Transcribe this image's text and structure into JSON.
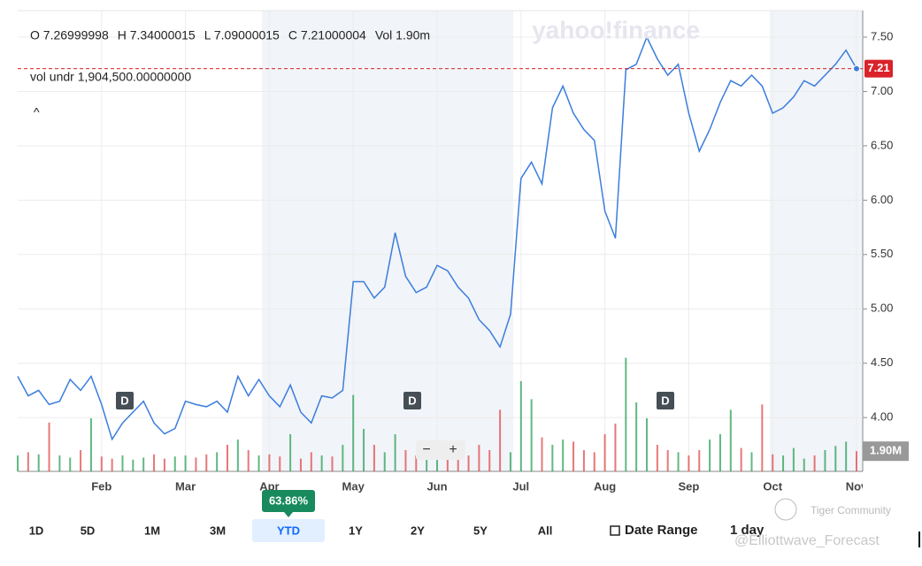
{
  "header": {
    "ohlc": [
      "O 7.26999998",
      "H 7.34000015",
      "L 7.09000015",
      "C 7.21000004",
      "Vol 1.90m"
    ],
    "vol_undr": "vol undr  1,904,500.00000000",
    "collapse": "^",
    "watermark": "yahoo!finance"
  },
  "chart_data": {
    "type": "line",
    "categories": [
      null,
      null,
      null,
      null,
      null,
      null,
      null,
      null,
      "Feb",
      null,
      null,
      null,
      null,
      null,
      null,
      null,
      "Mar",
      null,
      null,
      null,
      null,
      null,
      null,
      null,
      "Apr",
      null,
      null,
      null,
      null,
      null,
      null,
      null,
      "May",
      null,
      null,
      null,
      null,
      null,
      null,
      null,
      "Jun",
      null,
      null,
      null,
      null,
      null,
      null,
      null,
      "Jul",
      null,
      null,
      null,
      null,
      null,
      null,
      null,
      "Aug",
      null,
      null,
      null,
      null,
      null,
      null,
      null,
      "Sep",
      null,
      null,
      null,
      null,
      null,
      null,
      null,
      "Oct",
      null,
      null,
      null,
      null,
      null,
      null,
      null,
      "Nov"
    ],
    "series": [
      {
        "color": "#3b7ddd",
        "values": [
          4.38,
          4.2,
          4.25,
          4.12,
          4.15,
          4.35,
          4.25,
          4.38,
          4.12,
          3.8,
          3.95,
          4.05,
          4.15,
          3.95,
          3.85,
          3.9,
          4.15,
          4.12,
          4.1,
          4.15,
          4.05,
          4.38,
          4.2,
          4.35,
          4.2,
          4.1,
          4.3,
          4.05,
          3.95,
          4.2,
          4.18,
          4.25,
          5.25,
          5.25,
          5.1,
          5.2,
          5.7,
          5.3,
          5.15,
          5.2,
          5.4,
          5.35,
          5.2,
          5.1,
          4.9,
          4.8,
          4.65,
          4.95,
          6.2,
          6.35,
          6.15,
          6.85,
          7.05,
          6.8,
          6.65,
          6.55,
          5.9,
          5.65,
          7.2,
          7.25,
          7.5,
          7.3,
          7.15,
          7.25,
          6.8,
          6.45,
          6.65,
          6.9,
          7.1,
          7.05,
          7.15,
          7.05,
          6.8,
          6.85,
          6.95,
          7.1,
          7.05,
          7.15,
          7.25,
          7.38,
          7.21
        ]
      }
    ],
    "ylim": [
      3.505,
      7.744
    ],
    "yticks": [
      {
        "value": 4,
        "label": "4.00"
      },
      {
        "value": 4.5,
        "label": "4.50"
      },
      {
        "value": 5,
        "label": "5.00"
      },
      {
        "value": 5.5,
        "label": "5.50"
      },
      {
        "value": 6,
        "label": "6.00"
      },
      {
        "value": 6.5,
        "label": "6.50"
      },
      {
        "value": 7,
        "label": "7.00"
      },
      {
        "value": 7.5,
        "label": "7.50"
      }
    ],
    "grid": true,
    "current": {
      "value": 7.21,
      "label": "7.21",
      "color": "#d9222a"
    },
    "volume": {
      "values": [
        1.5,
        1.8,
        1.6,
        4.6,
        1.5,
        1.3,
        2.0,
        5.0,
        1.4,
        1.2,
        1.5,
        1.1,
        1.3,
        1.6,
        1.2,
        1.4,
        1.5,
        1.3,
        1.6,
        1.8,
        2.5,
        3.0,
        2.0,
        1.5,
        1.6,
        1.4,
        3.5,
        1.2,
        1.8,
        1.5,
        1.4,
        2.5,
        7.2,
        4.0,
        2.5,
        1.8,
        3.5,
        2.0,
        1.5,
        1.8,
        2.0,
        1.6,
        1.8,
        1.5,
        2.5,
        2.0,
        5.8,
        1.8,
        8.5,
        6.8,
        3.2,
        2.5,
        3.0,
        2.8,
        2.0,
        1.8,
        3.5,
        4.5,
        10.7,
        6.5,
        5.0,
        2.5,
        2.0,
        1.8,
        1.5,
        2.0,
        3.0,
        3.5,
        5.8,
        2.2,
        1.8,
        6.3,
        1.6,
        1.5,
        2.2,
        1.2,
        1.5,
        2.0,
        2.4,
        2.8,
        1.9
      ],
      "ylim": [
        0,
        43.4
      ],
      "last_label": "1.90M",
      "up_color": "#2ca05a",
      "down_color": "#e04a4a"
    },
    "events": [
      "D",
      "D",
      "D"
    ]
  },
  "controls": {
    "ranges": [
      "1D",
      "5D",
      "1M",
      "3M",
      "YTD",
      "1Y",
      "2Y",
      "5Y",
      "All"
    ],
    "active": 4,
    "ytd_change": "63.86%",
    "date_range": "Date Range",
    "interval": "1 day"
  },
  "watermarks": {
    "community": "Tiger Community",
    "author": "@Elliottwave_Forecast"
  }
}
